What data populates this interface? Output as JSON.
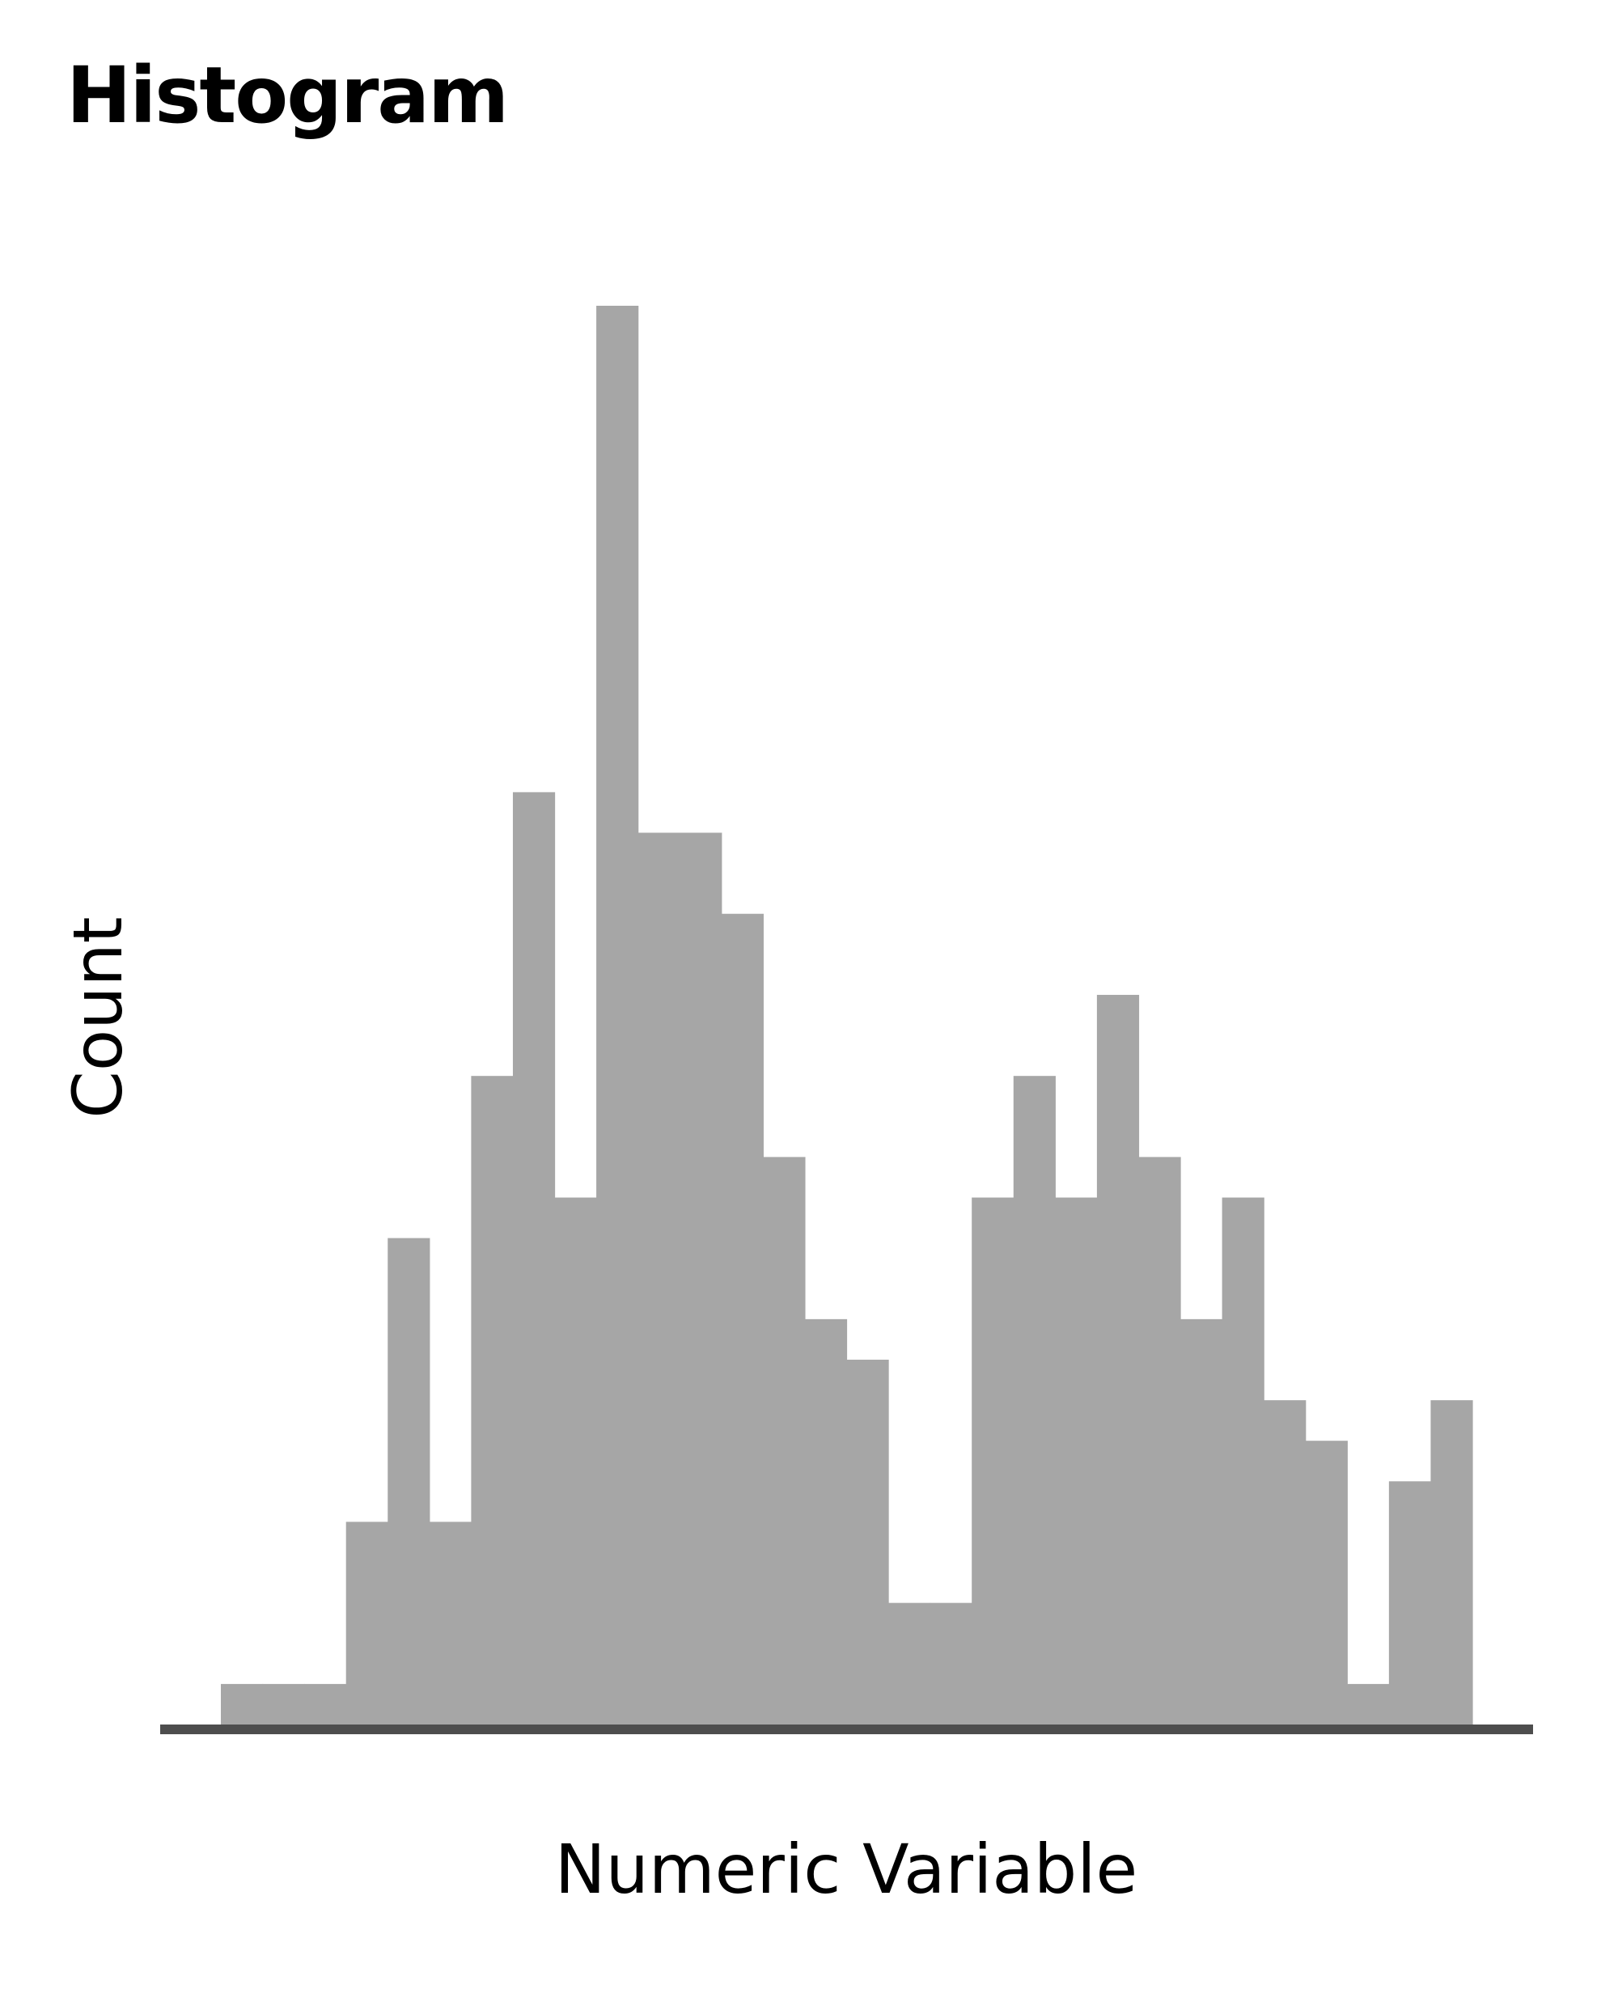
{
  "chart_data": {
    "type": "bar",
    "title": "Histogram",
    "xlabel": "Numeric Variable",
    "ylabel": "Count",
    "ylim": [
      0,
      35
    ],
    "grid": false,
    "legend": "none",
    "bar_color": "#a6a6a6",
    "axis_color": "#4d4d4d",
    "bins": [
      {
        "x0": 0,
        "x1": 1,
        "count": 1
      },
      {
        "x0": 1,
        "x1": 2,
        "count": 1
      },
      {
        "x0": 2,
        "x1": 3,
        "count": 1
      },
      {
        "x0": 3,
        "x1": 4,
        "count": 5
      },
      {
        "x0": 4,
        "x1": 5,
        "count": 12
      },
      {
        "x0": 5,
        "x1": 6,
        "count": 5
      },
      {
        "x0": 6,
        "x1": 7,
        "count": 16
      },
      {
        "x0": 7,
        "x1": 8,
        "count": 23
      },
      {
        "x0": 8,
        "x1": 9,
        "count": 13
      },
      {
        "x0": 9,
        "x1": 10,
        "count": 35
      },
      {
        "x0": 10,
        "x1": 11,
        "count": 22
      },
      {
        "x0": 11,
        "x1": 12,
        "count": 22
      },
      {
        "x0": 12,
        "x1": 13,
        "count": 20
      },
      {
        "x0": 13,
        "x1": 14,
        "count": 14
      },
      {
        "x0": 14,
        "x1": 15,
        "count": 10
      },
      {
        "x0": 15,
        "x1": 16,
        "count": 9
      },
      {
        "x0": 16,
        "x1": 17,
        "count": 3
      },
      {
        "x0": 17,
        "x1": 18,
        "count": 3
      },
      {
        "x0": 18,
        "x1": 19,
        "count": 13
      },
      {
        "x0": 19,
        "x1": 20,
        "count": 16
      },
      {
        "x0": 20,
        "x1": 21,
        "count": 13
      },
      {
        "x0": 21,
        "x1": 22,
        "count": 18
      },
      {
        "x0": 22,
        "x1": 23,
        "count": 14
      },
      {
        "x0": 23,
        "x1": 24,
        "count": 10
      },
      {
        "x0": 24,
        "x1": 25,
        "count": 13
      },
      {
        "x0": 25,
        "x1": 26,
        "count": 8
      },
      {
        "x0": 26,
        "x1": 27,
        "count": 7
      },
      {
        "x0": 27,
        "x1": 28,
        "count": 1
      },
      {
        "x0": 28,
        "x1": 29,
        "count": 6
      },
      {
        "x0": 29,
        "x1": 30,
        "count": 8
      }
    ]
  }
}
